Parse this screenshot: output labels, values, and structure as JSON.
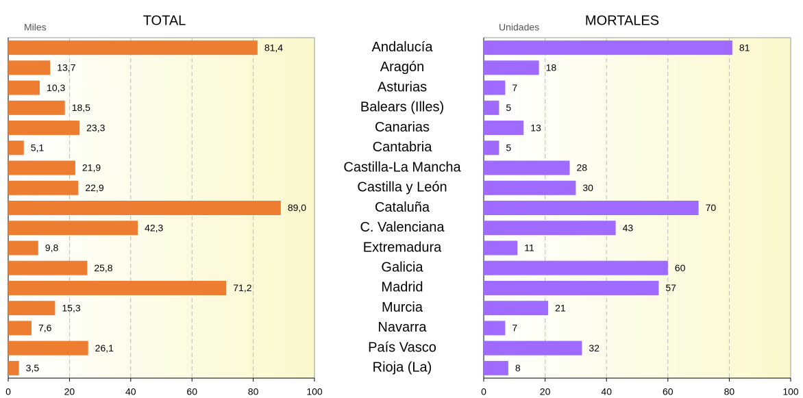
{
  "chart_data": [
    {
      "type": "bar",
      "orientation": "horizontal",
      "title": "TOTAL",
      "unit_label": "Miles",
      "color": "#ed7d31",
      "values": [
        81.4,
        13.7,
        10.3,
        18.5,
        23.3,
        5.1,
        21.9,
        22.9,
        89.0,
        42.3,
        9.8,
        25.8,
        71.2,
        15.3,
        7.6,
        26.1,
        3.5
      ],
      "value_labels": [
        "81,4",
        "13,7",
        "10,3",
        "18,5",
        "23,3",
        "5,1",
        "21,9",
        "22,9",
        "89,0",
        "42,3",
        "9,8",
        "25,8",
        "71,2",
        "15,3",
        "7,6",
        "26,1",
        "3,5"
      ],
      "xlim": [
        0,
        100
      ],
      "xticks": [
        0,
        20,
        40,
        60,
        80,
        100
      ],
      "grid": true
    },
    {
      "type": "bar",
      "orientation": "horizontal",
      "title": "MORTALES",
      "unit_label": "Unidades",
      "color": "#9f6bff",
      "categories": [
        "Andalucía",
        "Aragón",
        "Asturias",
        "Balears (Illes)",
        "Canarias",
        "Cantabria",
        "Castilla-La Mancha",
        "Castilla y León",
        "Cataluña",
        "C. Valenciana",
        "Extremadura",
        "Galicia",
        "Madrid",
        "Murcia",
        "Navarra",
        "País Vasco",
        "Rioja (La)"
      ],
      "values": [
        81,
        18,
        7,
        5,
        13,
        5,
        28,
        30,
        70,
        43,
        11,
        60,
        57,
        21,
        7,
        32,
        8
      ],
      "xlim": [
        0,
        100
      ],
      "xticks": [
        0,
        20,
        40,
        60,
        80,
        100
      ],
      "grid": true
    }
  ]
}
